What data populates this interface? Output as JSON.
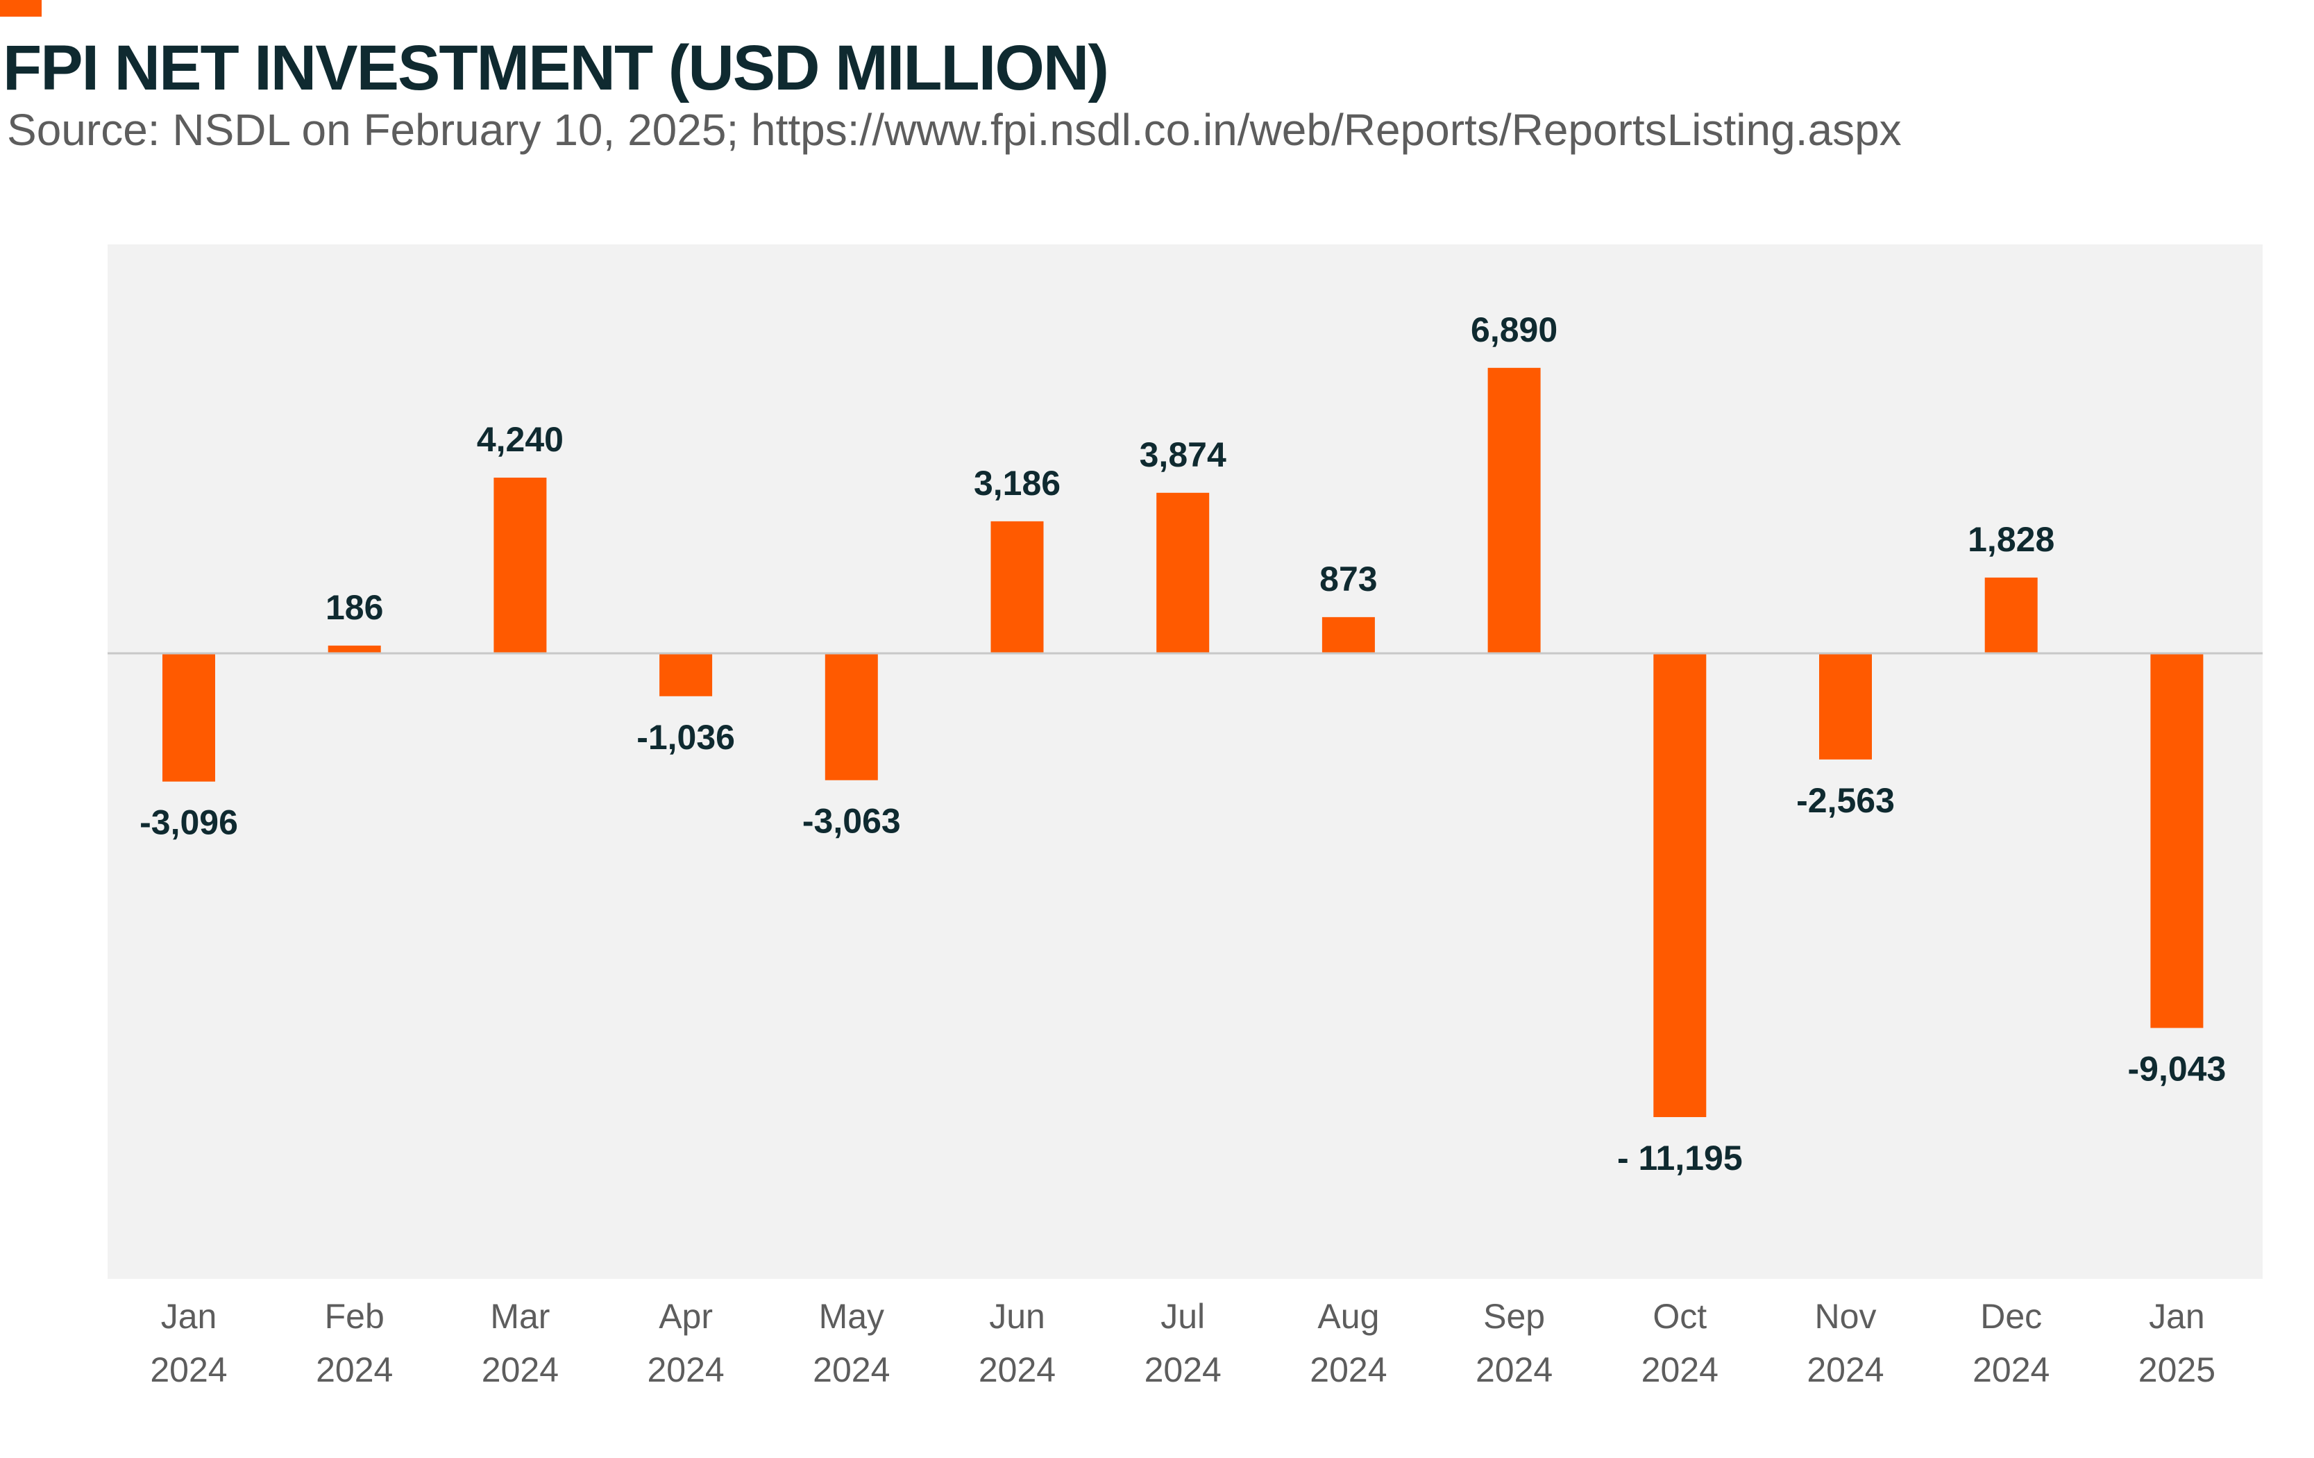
{
  "header": {
    "title": "FPI NET INVESTMENT (USD MILLION)",
    "subtitle": "Source:  NSDL on February 10, 2025; https://www.fpi.nsdl.co.in/web/Reports/ReportsListing.aspx"
  },
  "colors": {
    "accent": "#ff5a00",
    "bar": "#ff5a00",
    "plot_background": "#f2f2f2",
    "zero_line": "#c8c8c8",
    "title": "#0f2a30",
    "label": "#0f2a30",
    "tick": "#5d5d5d"
  },
  "chart_data": {
    "type": "bar",
    "title": "FPI NET INVESTMENT (USD MILLION)",
    "subtitle": "Source:  NSDL on February 10, 2025; https://www.fpi.nsdl.co.in/web/Reports/ReportsListing.aspx",
    "xlabel": "",
    "ylabel": "",
    "categories": [
      [
        "Jan",
        "2024"
      ],
      [
        "Feb",
        "2024"
      ],
      [
        "Mar",
        "2024"
      ],
      [
        "Apr",
        "2024"
      ],
      [
        "May",
        "2024"
      ],
      [
        "Jun",
        "2024"
      ],
      [
        "Jul",
        "2024"
      ],
      [
        "Aug",
        "2024"
      ],
      [
        "Sep",
        "2024"
      ],
      [
        "Oct",
        "2024"
      ],
      [
        "Nov",
        "2024"
      ],
      [
        "Dec",
        "2024"
      ],
      [
        "Jan",
        "2025"
      ]
    ],
    "values": [
      -3096,
      186,
      4240,
      -1036,
      -3063,
      3186,
      3874,
      873,
      6890,
      -11195,
      -2563,
      1828,
      -9043
    ],
    "data_labels": [
      "-3,096",
      "186",
      "4,240",
      "-1,036",
      "-3,063",
      "3,186",
      "3,874",
      "873",
      "6,890",
      "- 11,195",
      "-2,563",
      "1,828",
      "-9,043"
    ],
    "ylim": [
      -15100,
      9870
    ],
    "grid": false,
    "legend": "none"
  }
}
